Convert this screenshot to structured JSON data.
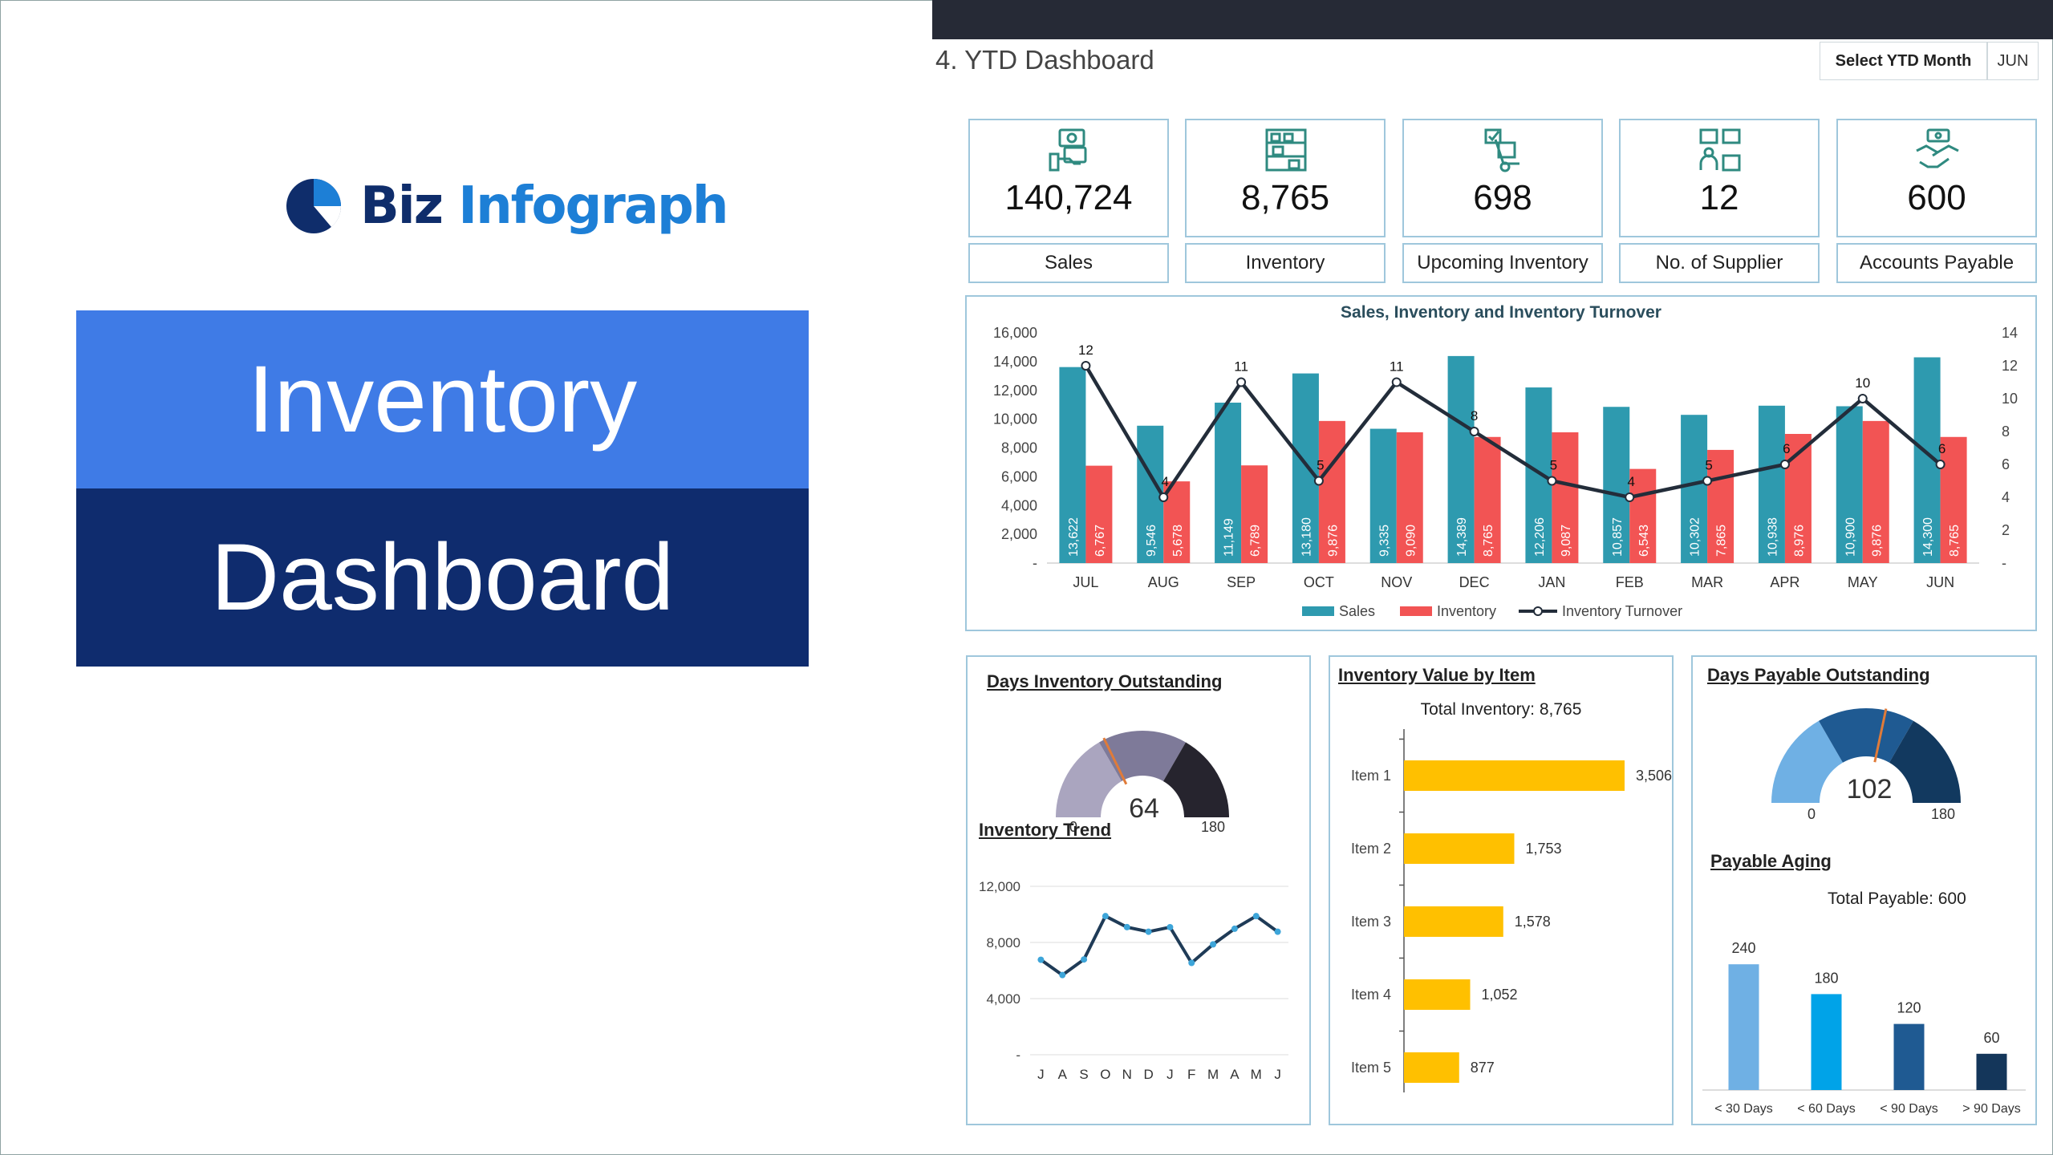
{
  "brand": {
    "part1": "Biz",
    "part2": "Infograph"
  },
  "hero": {
    "line1": "Inventory",
    "line2": "Dashboard"
  },
  "header": {
    "title": "4. YTD Dashboard",
    "select_label": "Select YTD Month",
    "select_value": "JUN"
  },
  "kpis": [
    {
      "value": "140,724",
      "label": "Sales",
      "icon": "money-hand-icon"
    },
    {
      "value": "8,765",
      "label": "Inventory",
      "icon": "warehouse-shelf-icon"
    },
    {
      "value": "698",
      "label": "Upcoming Inventory",
      "icon": "hand-truck-icon"
    },
    {
      "value": "12",
      "label": "No. of Supplier",
      "icon": "supplier-boxes-icon"
    },
    {
      "value": "600",
      "label": "Accounts Payable",
      "icon": "handshake-payment-icon"
    }
  ],
  "colors": {
    "sales": "#2e9aaf",
    "inventory": "#f25454",
    "line": "#232d3a",
    "bars": "#ffc000",
    "accent_blue": "#3f7be6",
    "navy": "#0f2c6e"
  },
  "chart_data": [
    {
      "type": "bar",
      "title": "Sales, Inventory and Inventory Turnover",
      "categories": [
        "JUL",
        "AUG",
        "SEP",
        "OCT",
        "NOV",
        "DEC",
        "JAN",
        "FEB",
        "MAR",
        "APR",
        "MAY",
        "JUN"
      ],
      "series": [
        {
          "name": "Sales",
          "values": [
            13622,
            9546,
            11149,
            13180,
            9335,
            14389,
            12206,
            10857,
            10302,
            10938,
            10900,
            14300
          ],
          "labels": [
            "13,622",
            "9,546",
            "11,149",
            "13,180",
            "9,335",
            "14,389",
            "12,206",
            "10,857",
            "10,302",
            "10,938",
            "10,900",
            "14,300"
          ]
        },
        {
          "name": "Inventory",
          "values": [
            6767,
            5678,
            6789,
            9876,
            9090,
            8765,
            9087,
            6543,
            7865,
            8976,
            9876,
            8765
          ],
          "labels": [
            "6,767",
            "5,678",
            "6,789",
            "9,876",
            "9,090",
            "8,765",
            "9,087",
            "6,543",
            "7,865",
            "8,976",
            "9,876",
            "8,765"
          ]
        },
        {
          "name": "Inventory Turnover",
          "type": "line",
          "axis": "right",
          "values": [
            12,
            4,
            11,
            5,
            11,
            8,
            5,
            4,
            5,
            6,
            10,
            6
          ]
        }
      ],
      "ylim": [
        0,
        16000
      ],
      "yticks": [
        "-",
        "2,000",
        "4,000",
        "6,000",
        "8,000",
        "10,000",
        "12,000",
        "14,000",
        "16,000"
      ],
      "y2lim": [
        0,
        14
      ],
      "y2ticks": [
        "-",
        "2",
        "4",
        "6",
        "8",
        "10",
        "12",
        "14"
      ],
      "legend": "bottom"
    },
    {
      "type": "gauge",
      "title": "Days Inventory Outstanding",
      "value": 64,
      "min": 0,
      "max": 180,
      "value_label": "64",
      "min_label": "0",
      "max_label": "180",
      "band_colors": [
        "#aaa5bf",
        "#7e7a99",
        "#26242e"
      ]
    },
    {
      "type": "line",
      "title": "Inventory Trend",
      "categories": [
        "J",
        "A",
        "S",
        "O",
        "N",
        "D",
        "J",
        "F",
        "M",
        "A",
        "M",
        "J"
      ],
      "values": [
        6767,
        5678,
        6789,
        9876,
        9090,
        8765,
        9087,
        6543,
        7865,
        8976,
        9876,
        8765
      ],
      "ylim": [
        0,
        12000
      ],
      "yticks": [
        "-",
        "4,000",
        "8,000",
        "12,000"
      ]
    },
    {
      "type": "bar",
      "orientation": "horizontal",
      "title": "Inventory Value by Item",
      "subtitle": "Total Inventory: 8,765",
      "categories": [
        "Item 1",
        "Item 2",
        "Item 3",
        "Item 4",
        "Item 5"
      ],
      "values": [
        3506,
        1753,
        1578,
        1052,
        877
      ],
      "labels": [
        "3,506",
        "1,753",
        "1,578",
        "1,052",
        "877"
      ]
    },
    {
      "type": "gauge",
      "title": "Days Payable Outstanding",
      "value": 102,
      "min": 0,
      "max": 180,
      "value_label": "102",
      "min_label": "0",
      "max_label": "180",
      "band_colors": [
        "#6fb0e4",
        "#1f5a92",
        "#12395f"
      ]
    },
    {
      "type": "bar",
      "title": "Payable Aging",
      "subtitle": "Total Payable: 600",
      "categories": [
        "< 30 Days",
        "< 60 Days",
        "< 90 Days",
        "> 90 Days"
      ],
      "values": [
        240,
        180,
        120,
        60
      ],
      "labels": [
        "240",
        "180",
        "120",
        "60"
      ],
      "colors": [
        "#6fb0e4",
        "#00a3e8",
        "#1f5a92",
        "#14365a"
      ]
    }
  ]
}
